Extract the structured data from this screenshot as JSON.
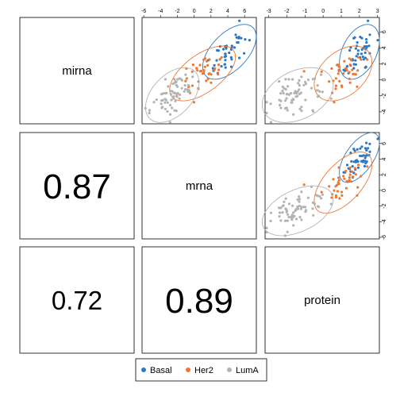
{
  "chart_data": {
    "type": "scatter-matrix",
    "variables": [
      "mirna",
      "mrna",
      "protein"
    ],
    "correlations": [
      {
        "row": "mrna",
        "col": "mirna",
        "value": "0.87"
      },
      {
        "row": "protein",
        "col": "mirna",
        "value": "0.72"
      },
      {
        "row": "protein",
        "col": "mrna",
        "value": "0.89"
      }
    ],
    "axis": {
      "x_mrna_ticks": [
        "-6",
        "-4",
        "-2",
        "0",
        "2",
        "4",
        "6"
      ],
      "x_protein_ticks": [
        "-3",
        "-2",
        "-1",
        "0",
        "1",
        "2",
        "3"
      ],
      "y_mirna_ticks": [
        "-4",
        "-2",
        "0",
        "2",
        "4",
        "6"
      ],
      "y_mrna_ticks": [
        "-6",
        "-4",
        "-2",
        "0",
        "2",
        "4",
        "6"
      ]
    },
    "ranges": {
      "mirna": [
        -5.5,
        7.8
      ],
      "mrna": [
        -6.2,
        7.4
      ],
      "protein": [
        -3.2,
        3.1
      ]
    },
    "legend": {
      "placement": "bottom",
      "entries": [
        {
          "name": "Basal",
          "color": "#2e78c2"
        },
        {
          "name": "Her2",
          "color": "#ee7733"
        },
        {
          "name": "LumA",
          "color": "#b3b3b3"
        }
      ]
    },
    "groups": [
      {
        "name": "Basal",
        "color": "#2e78c2",
        "mean": {
          "mirna": 3.5,
          "mrna": 4.2,
          "protein": 2.0
        },
        "sd": {
          "mirna": 1.4,
          "mrna": 1.3,
          "protein": 0.45
        },
        "r": {
          "mirna_mrna": 0.55,
          "mirna_protein": 0.4,
          "mrna_protein": 0.6
        },
        "n": 45
      },
      {
        "name": "Her2",
        "color": "#ee7733",
        "mean": {
          "mirna": 0.8,
          "mrna": 1.0,
          "protein": 1.1
        },
        "sd": {
          "mirna": 1.4,
          "mrna": 1.6,
          "protein": 0.65
        },
        "r": {
          "mirna_mrna": 0.6,
          "mirna_protein": 0.4,
          "mrna_protein": 0.6
        },
        "n": 40
      },
      {
        "name": "LumA",
        "color": "#b3b3b3",
        "mean": {
          "mirna": -1.9,
          "mrna": -2.6,
          "protein": -1.4
        },
        "sd": {
          "mirna": 1.4,
          "mrna": 1.3,
          "protein": 0.8
        },
        "r": {
          "mirna_mrna": 0.45,
          "mirna_protein": 0.35,
          "mrna_protein": 0.45
        },
        "n": 70
      }
    ]
  }
}
